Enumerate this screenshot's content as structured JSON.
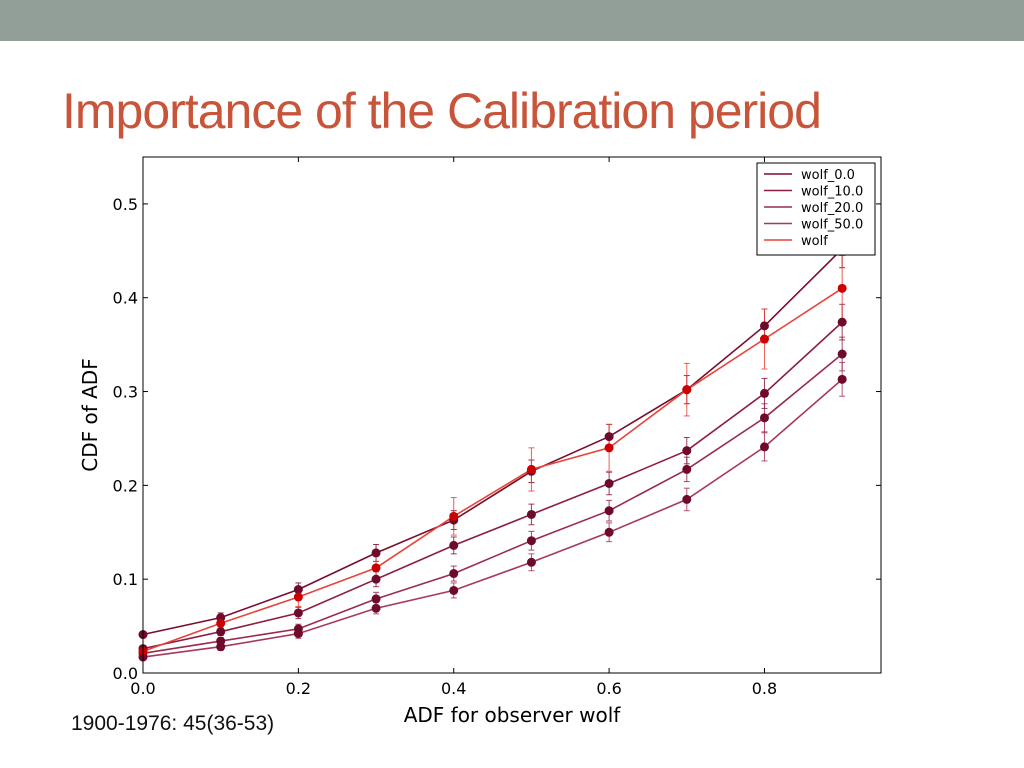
{
  "slide": {
    "title": "Importance of the Calibration period",
    "caption": "1900-1976: 45(36-53)",
    "top_band_color": "#919f98",
    "title_color": "#c8553a"
  },
  "chart_data": {
    "type": "line",
    "title": "",
    "xlabel": "ADF for observer wolf",
    "ylabel": "CDF of ADF",
    "xlim": [
      0.0,
      0.95
    ],
    "ylim": [
      0.0,
      0.55
    ],
    "xticks": [
      "0.0",
      "0.2",
      "0.4",
      "0.6",
      "0.8"
    ],
    "xtick_values": [
      0.0,
      0.2,
      0.4,
      0.6,
      0.8
    ],
    "yticks": [
      "0.0",
      "0.1",
      "0.2",
      "0.3",
      "0.4",
      "0.5"
    ],
    "ytick_values": [
      0.0,
      0.1,
      0.2,
      0.3,
      0.4,
      0.5
    ],
    "grid": false,
    "legend_position": "top-right",
    "x": [
      0.0,
      0.1,
      0.2,
      0.3,
      0.4,
      0.5,
      0.6,
      0.7,
      0.8,
      0.9
    ],
    "series": [
      {
        "name": "wolf_0.0",
        "color": "#7a0c2e",
        "values": [
          0.041,
          0.059,
          0.089,
          0.128,
          0.163,
          0.215,
          0.252,
          0.302,
          0.37,
          0.452
        ],
        "errors": [
          0.003,
          0.005,
          0.007,
          0.009,
          0.01,
          0.012,
          0.013,
          0.015,
          0.018,
          0.02
        ]
      },
      {
        "name": "wolf_10.0",
        "color": "#8c1c42",
        "values": [
          0.026,
          0.044,
          0.064,
          0.1,
          0.136,
          0.169,
          0.202,
          0.237,
          0.298,
          0.374
        ],
        "errors": [
          0.003,
          0.004,
          0.006,
          0.008,
          0.009,
          0.011,
          0.012,
          0.014,
          0.016,
          0.019
        ]
      },
      {
        "name": "wolf_20.0",
        "color": "#9a2a4e",
        "values": [
          0.021,
          0.034,
          0.047,
          0.079,
          0.106,
          0.141,
          0.173,
          0.217,
          0.272,
          0.34
        ],
        "errors": [
          0.003,
          0.004,
          0.005,
          0.007,
          0.008,
          0.01,
          0.011,
          0.013,
          0.015,
          0.018
        ]
      },
      {
        "name": "wolf_50.0",
        "color": "#a8385a",
        "values": [
          0.017,
          0.028,
          0.042,
          0.069,
          0.088,
          0.118,
          0.15,
          0.185,
          0.241,
          0.313
        ],
        "errors": [
          0.003,
          0.004,
          0.005,
          0.006,
          0.008,
          0.009,
          0.01,
          0.012,
          0.015,
          0.018
        ]
      },
      {
        "name": "wolf",
        "color": "#e8443a",
        "marker_color": "#cc0000",
        "values": [
          0.023,
          0.053,
          0.081,
          0.112,
          0.167,
          0.217,
          0.24,
          0.302,
          0.356,
          0.41
        ],
        "errors": [
          0.004,
          0.007,
          0.01,
          0.013,
          0.02,
          0.023,
          0.025,
          0.028,
          0.032,
          0.035
        ]
      }
    ]
  }
}
